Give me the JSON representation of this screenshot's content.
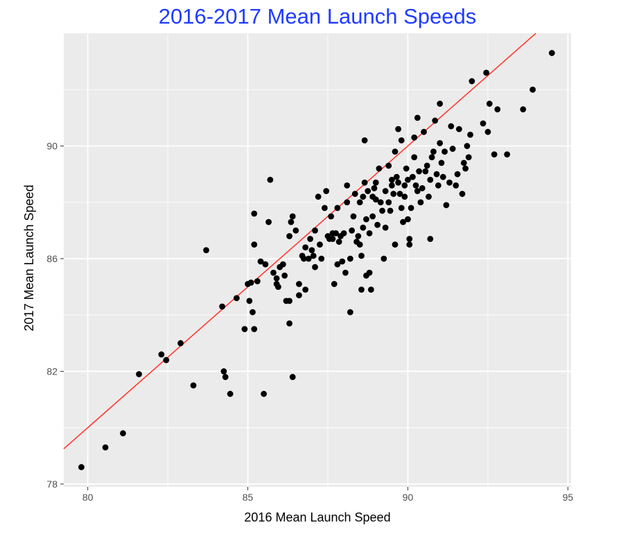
{
  "chart_data": {
    "type": "scatter",
    "title": "2016-2017 Mean Launch Speeds",
    "xlabel": "2016 Mean Launch Speed",
    "ylabel": "2017 Mean Launch Speed",
    "xlim": [
      79.25,
      95.1
    ],
    "ylim": [
      77.9,
      94.0
    ],
    "x_ticks": [
      "80",
      "85",
      "90",
      "95"
    ],
    "y_ticks": [
      "78",
      "82",
      "86",
      "90"
    ],
    "x_tick_values": [
      80,
      85,
      90,
      95
    ],
    "y_tick_values": [
      78,
      82,
      86,
      90
    ],
    "grid": true,
    "legend": "none",
    "colors": {
      "title": "#1f3bff",
      "panel_background": "#ebebeb",
      "grid": "#ffffff",
      "points": "#000000",
      "reference_line": "#ff3b30"
    },
    "reference_line": {
      "type": "identity",
      "slope": 1,
      "intercept": 0
    },
    "points": [
      [
        79.8,
        78.6
      ],
      [
        80.55,
        79.3
      ],
      [
        81.1,
        79.8
      ],
      [
        81.6,
        81.9
      ],
      [
        82.3,
        82.6
      ],
      [
        82.45,
        82.4
      ],
      [
        82.9,
        83.0
      ],
      [
        83.3,
        81.5
      ],
      [
        83.7,
        86.3
      ],
      [
        84.2,
        84.3
      ],
      [
        84.25,
        82.0
      ],
      [
        84.3,
        81.8
      ],
      [
        84.45,
        81.2
      ],
      [
        84.65,
        84.6
      ],
      [
        84.9,
        83.5
      ],
      [
        85.05,
        84.5
      ],
      [
        85.0,
        85.1
      ],
      [
        85.1,
        85.15
      ],
      [
        85.15,
        84.1
      ],
      [
        85.2,
        83.5
      ],
      [
        85.2,
        86.5
      ],
      [
        85.2,
        87.6
      ],
      [
        85.3,
        85.2
      ],
      [
        85.4,
        85.9
      ],
      [
        85.5,
        81.2
      ],
      [
        85.55,
        85.8
      ],
      [
        85.65,
        87.3
      ],
      [
        85.7,
        88.8
      ],
      [
        85.8,
        85.5
      ],
      [
        85.9,
        85.3
      ],
      [
        85.9,
        85.1
      ],
      [
        85.95,
        85.0
      ],
      [
        86.0,
        85.7
      ],
      [
        86.1,
        85.8
      ],
      [
        86.15,
        85.4
      ],
      [
        86.2,
        84.5
      ],
      [
        86.3,
        84.5
      ],
      [
        86.3,
        83.7
      ],
      [
        86.3,
        86.8
      ],
      [
        86.35,
        87.3
      ],
      [
        86.4,
        87.5
      ],
      [
        86.4,
        81.8
      ],
      [
        86.5,
        87.0
      ],
      [
        86.6,
        85.1
      ],
      [
        86.6,
        84.7
      ],
      [
        86.7,
        86.1
      ],
      [
        86.75,
        86.0
      ],
      [
        86.8,
        86.4
      ],
      [
        86.8,
        84.9
      ],
      [
        86.9,
        86.0
      ],
      [
        86.95,
        86.7
      ],
      [
        87.0,
        86.3
      ],
      [
        87.05,
        86.1
      ],
      [
        87.1,
        85.7
      ],
      [
        87.1,
        87.0
      ],
      [
        87.2,
        88.2
      ],
      [
        87.25,
        86.5
      ],
      [
        87.3,
        86.0
      ],
      [
        87.4,
        87.8
      ],
      [
        87.45,
        88.4
      ],
      [
        87.5,
        86.8
      ],
      [
        87.55,
        86.7
      ],
      [
        87.6,
        87.5
      ],
      [
        87.65,
        86.9
      ],
      [
        87.65,
        86.7
      ],
      [
        87.7,
        85.1
      ],
      [
        87.75,
        86.9
      ],
      [
        87.8,
        85.8
      ],
      [
        87.8,
        87.8
      ],
      [
        87.85,
        86.6
      ],
      [
        87.9,
        86.8
      ],
      [
        87.95,
        85.9
      ],
      [
        88.0,
        86.9
      ],
      [
        88.05,
        85.5
      ],
      [
        88.1,
        88.0
      ],
      [
        88.1,
        88.6
      ],
      [
        88.2,
        86.0
      ],
      [
        88.2,
        84.1
      ],
      [
        88.25,
        87.0
      ],
      [
        88.3,
        87.5
      ],
      [
        88.35,
        88.3
      ],
      [
        88.4,
        86.6
      ],
      [
        88.45,
        86.8
      ],
      [
        88.5,
        86.5
      ],
      [
        88.5,
        88.0
      ],
      [
        88.55,
        84.9
      ],
      [
        88.55,
        86.1
      ],
      [
        88.6,
        87.1
      ],
      [
        88.6,
        88.2
      ],
      [
        88.65,
        88.7
      ],
      [
        88.65,
        90.2
      ],
      [
        88.7,
        85.4
      ],
      [
        88.7,
        87.4
      ],
      [
        88.75,
        88.4
      ],
      [
        88.8,
        86.9
      ],
      [
        88.8,
        85.5
      ],
      [
        88.85,
        84.9
      ],
      [
        88.9,
        87.5
      ],
      [
        88.9,
        88.2
      ],
      [
        88.95,
        88.5
      ],
      [
        89.0,
        88.1
      ],
      [
        89.0,
        88.7
      ],
      [
        89.05,
        87.2
      ],
      [
        89.1,
        89.2
      ],
      [
        89.15,
        88.0
      ],
      [
        89.2,
        87.7
      ],
      [
        89.25,
        86.0
      ],
      [
        89.3,
        88.4
      ],
      [
        89.3,
        87.1
      ],
      [
        89.4,
        88.0
      ],
      [
        89.4,
        89.3
      ],
      [
        89.45,
        87.7
      ],
      [
        89.5,
        88.6
      ],
      [
        89.5,
        88.8
      ],
      [
        89.55,
        88.3
      ],
      [
        89.6,
        86.5
      ],
      [
        89.6,
        89.8
      ],
      [
        89.65,
        88.9
      ],
      [
        89.7,
        88.7
      ],
      [
        89.7,
        90.6
      ],
      [
        89.75,
        88.3
      ],
      [
        89.8,
        87.8
      ],
      [
        89.8,
        90.2
      ],
      [
        89.85,
        87.3
      ],
      [
        89.9,
        88.2
      ],
      [
        89.9,
        88.6
      ],
      [
        89.95,
        89.2
      ],
      [
        90.0,
        88.8
      ],
      [
        90.0,
        87.4
      ],
      [
        90.05,
        86.5
      ],
      [
        90.05,
        86.7
      ],
      [
        90.1,
        87.8
      ],
      [
        90.15,
        88.9
      ],
      [
        90.2,
        89.6
      ],
      [
        90.2,
        90.3
      ],
      [
        90.25,
        88.6
      ],
      [
        90.3,
        88.4
      ],
      [
        90.3,
        91.0
      ],
      [
        90.35,
        89.1
      ],
      [
        90.4,
        88.0
      ],
      [
        90.45,
        88.5
      ],
      [
        90.5,
        90.5
      ],
      [
        90.55,
        89.1
      ],
      [
        90.6,
        89.3
      ],
      [
        90.65,
        88.2
      ],
      [
        90.7,
        88.8
      ],
      [
        90.7,
        86.7
      ],
      [
        90.75,
        89.6
      ],
      [
        90.8,
        89.8
      ],
      [
        90.85,
        90.9
      ],
      [
        90.9,
        89.0
      ],
      [
        90.95,
        88.6
      ],
      [
        91.0,
        90.1
      ],
      [
        91.0,
        91.5
      ],
      [
        91.05,
        89.4
      ],
      [
        91.1,
        88.9
      ],
      [
        91.15,
        89.8
      ],
      [
        91.2,
        87.9
      ],
      [
        91.3,
        88.7
      ],
      [
        91.35,
        90.7
      ],
      [
        91.4,
        89.9
      ],
      [
        91.5,
        88.6
      ],
      [
        91.55,
        89.0
      ],
      [
        91.6,
        90.6
      ],
      [
        91.7,
        88.3
      ],
      [
        91.75,
        89.4
      ],
      [
        91.8,
        89.2
      ],
      [
        91.85,
        90.0
      ],
      [
        91.9,
        89.6
      ],
      [
        91.95,
        90.4
      ],
      [
        92.0,
        92.3
      ],
      [
        92.35,
        90.8
      ],
      [
        92.45,
        92.6
      ],
      [
        92.5,
        90.5
      ],
      [
        92.55,
        91.5
      ],
      [
        92.7,
        89.7
      ],
      [
        92.8,
        91.3
      ],
      [
        93.1,
        89.7
      ],
      [
        93.6,
        91.3
      ],
      [
        93.9,
        92.0
      ],
      [
        94.5,
        93.3
      ]
    ]
  }
}
